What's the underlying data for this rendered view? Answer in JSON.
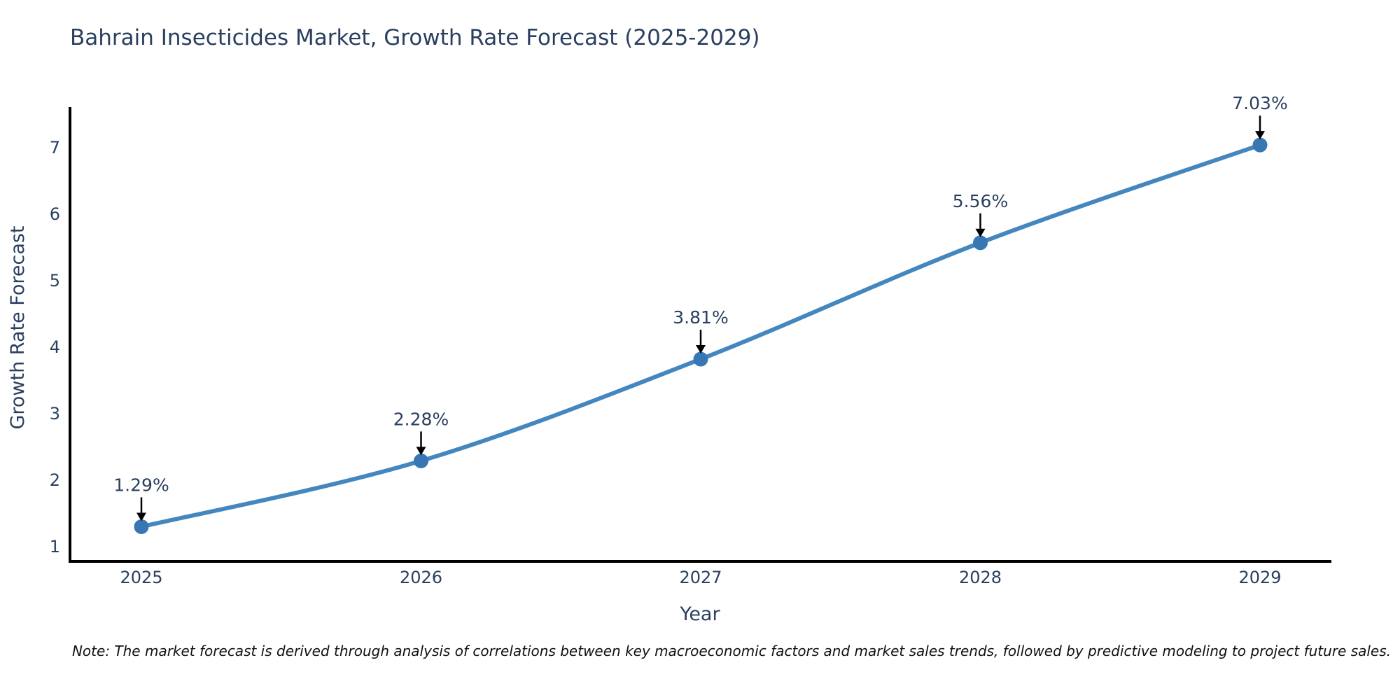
{
  "title": "Bahrain Insecticides Market, Growth Rate Forecast (2025-2029)",
  "footnote": "Note: The market forecast is derived through analysis of correlations between key macroeconomic factors and market sales trends, followed by predictive modeling to project future sales.",
  "colors": {
    "line": "#4486be",
    "marker": "#3876b4",
    "axis": "#000000",
    "text": "#2a3f5f",
    "annotation_arrow": "#000000",
    "background": "#ffffff"
  },
  "chart_data": {
    "type": "line",
    "title": "Bahrain Insecticides Market, Growth Rate Forecast (2025-2029)",
    "categories": [
      "2025",
      "2026",
      "2027",
      "2028",
      "2029"
    ],
    "x": [
      2025,
      2026,
      2027,
      2028,
      2029
    ],
    "values": [
      1.29,
      2.28,
      3.81,
      5.56,
      7.03
    ],
    "point_labels": [
      "1.29%",
      "2.28%",
      "3.81%",
      "5.56%",
      "7.03%"
    ],
    "xlabel": "Year",
    "ylabel": "Growth Rate Forecast",
    "yticks": [
      1,
      2,
      3,
      4,
      5,
      6,
      7
    ],
    "ylim": [
      0.77,
      7.6
    ],
    "grid": false,
    "legend": false,
    "line_shape": "spline",
    "marker": "circle",
    "annotations": "value label with downward black arrow above each data point"
  }
}
